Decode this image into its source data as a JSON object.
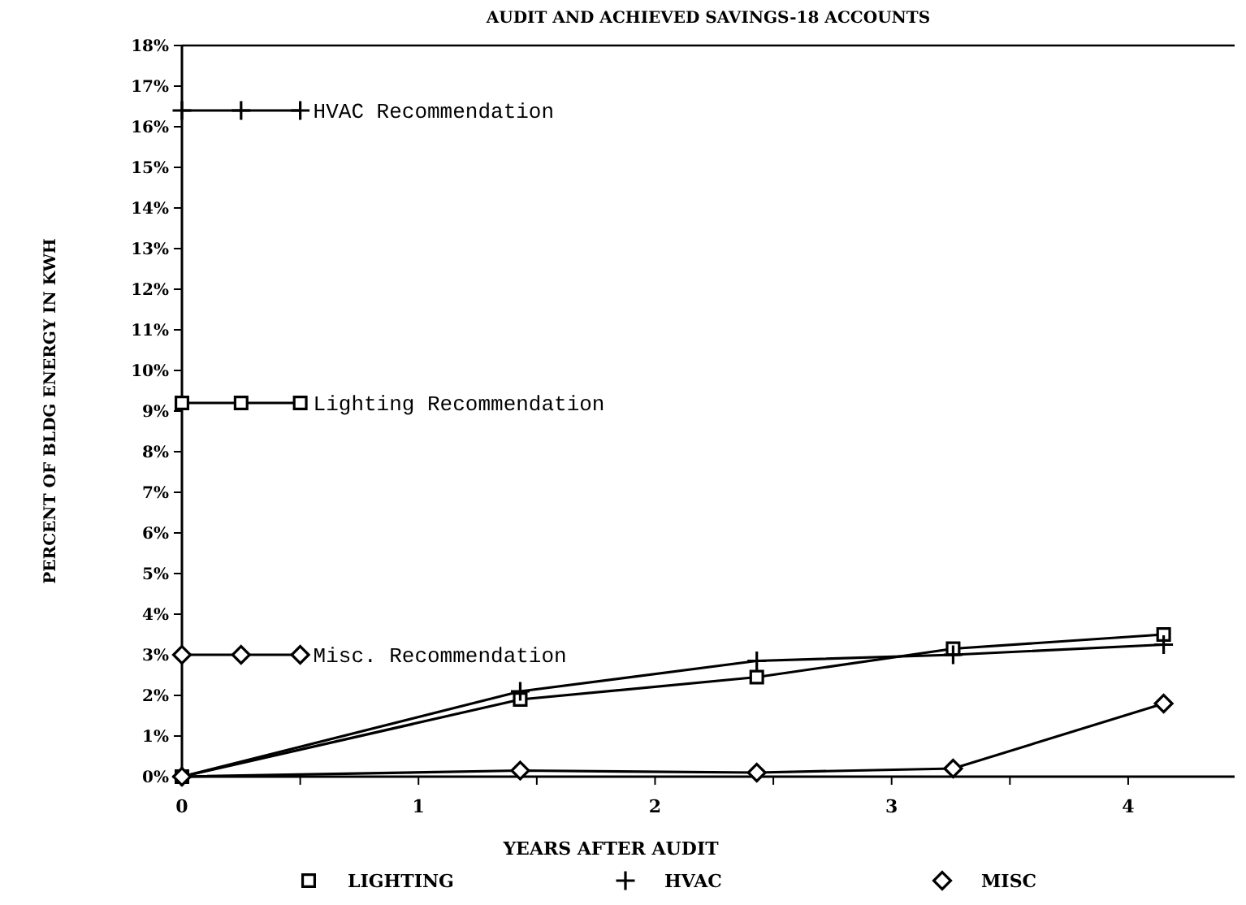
{
  "chart_data": {
    "type": "line",
    "title": "AUDIT AND ACHIEVED SAVINGS-18 ACCOUNTS",
    "xlabel": "YEARS AFTER AUDIT",
    "ylabel": "PERCENT OF BLDG ENERGY IN KWH",
    "xlim": [
      0,
      4.45
    ],
    "xticks": [
      0,
      {
        "value": 0.5,
        "label": null
      },
      1,
      {
        "value": 1.5,
        "label": null
      },
      2,
      {
        "value": 2.5,
        "label": null
      },
      3,
      {
        "value": 3.5,
        "label": null
      },
      4
    ],
    "ylim": [
      0,
      18
    ],
    "yticks": [
      {
        "value": 0,
        "label": "0%"
      },
      {
        "value": 1,
        "label": "1%"
      },
      {
        "value": 2,
        "label": "2%"
      },
      {
        "value": 3,
        "label": "3%"
      },
      {
        "value": 4,
        "label": "4%"
      },
      {
        "value": 5,
        "label": "5%"
      },
      {
        "value": 6,
        "label": "6%"
      },
      {
        "value": 7,
        "label": "7%"
      },
      {
        "value": 8,
        "label": "8%"
      },
      {
        "value": 9,
        "label": "9%"
      },
      {
        "value": 10,
        "label": "10%"
      },
      {
        "value": 11,
        "label": "11%"
      },
      {
        "value": 12,
        "label": "12%"
      },
      {
        "value": 13,
        "label": "13%"
      },
      {
        "value": 14,
        "label": "14%"
      },
      {
        "value": 15,
        "label": "15%"
      },
      {
        "value": 16,
        "label": "16%"
      },
      {
        "value": 17,
        "label": "17%"
      },
      {
        "value": 18,
        "label": "18%"
      }
    ],
    "grid": false,
    "legend": "bottom",
    "line_style": "solid",
    "series": [
      {
        "name": "LIGHTING",
        "color": "#000000",
        "marker": "square",
        "x": [
          0,
          1.43,
          2.43,
          3.26,
          4.15
        ],
        "values": [
          0,
          1.9,
          2.45,
          3.15,
          3.5
        ]
      },
      {
        "name": "HVAC",
        "color": "#000000",
        "marker": "cross",
        "x": [
          0,
          1.43,
          2.43,
          3.26,
          4.15
        ],
        "values": [
          0,
          2.1,
          2.85,
          3.0,
          3.25
        ]
      },
      {
        "name": "MISC",
        "color": "#000000",
        "marker": "diamond",
        "x": [
          0,
          1.43,
          2.43,
          3.26,
          4.15
        ],
        "values": [
          0,
          0.15,
          0.1,
          0.2,
          1.8
        ]
      },
      {
        "color": "#000000",
        "marker": "cross",
        "x": [
          0,
          0.25,
          0.5
        ],
        "values": [
          16.4,
          16.4,
          16.4
        ]
      },
      {
        "color": "#000000",
        "marker": "square",
        "x": [
          0,
          0.25,
          0.5
        ],
        "values": [
          9.2,
          9.2,
          9.2
        ]
      },
      {
        "color": "#000000",
        "marker": "diamond",
        "x": [
          0,
          0.25,
          0.5
        ],
        "values": [
          3.0,
          3.0,
          3.0
        ]
      }
    ],
    "annotations": [
      "HVAC Recommendation",
      "Lighting Recommendation",
      "Misc. Recommendation"
    ]
  }
}
